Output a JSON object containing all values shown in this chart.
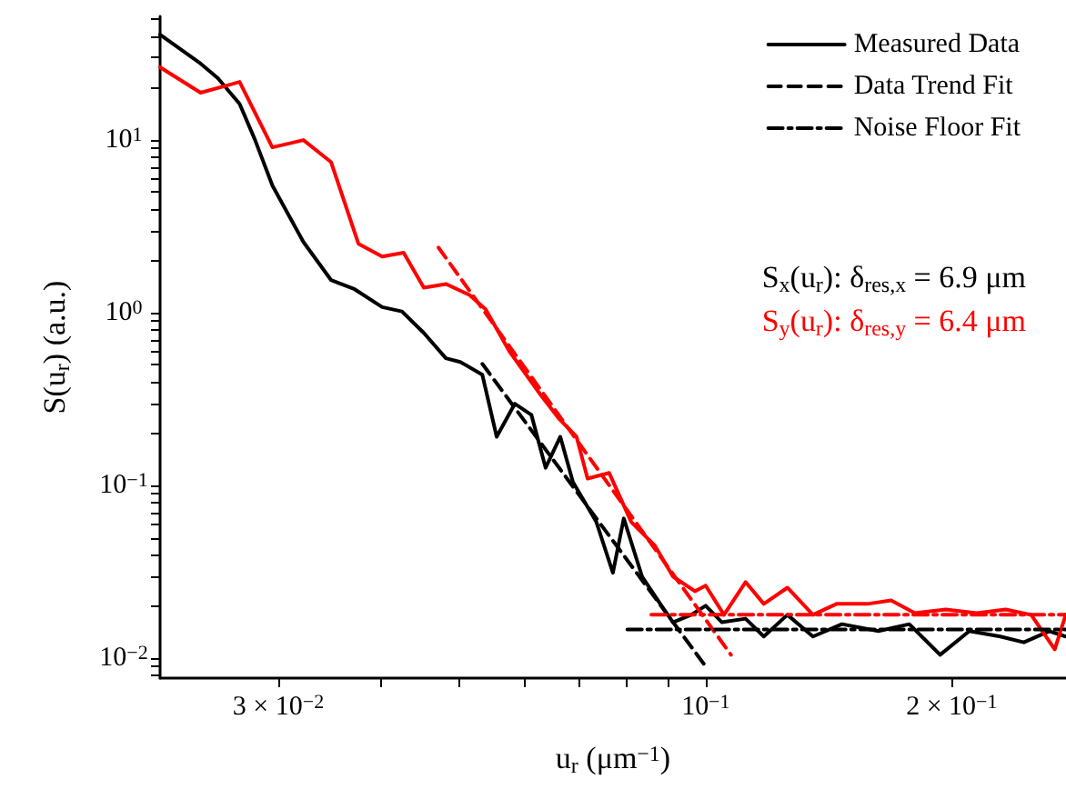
{
  "chart_data": {
    "type": "line",
    "xlabel": "u$_{r}$ (μm$^{−1}$)",
    "ylabel": "S(u$_{r}$) (a.u.)",
    "log": "xy",
    "grid": false,
    "legend": "top right",
    "marker": "none",
    "xlim": [
      0.0215,
      0.276
    ],
    "ylim": [
      0.0077,
      52
    ],
    "xticks": [
      {
        "value": 0.03,
        "label": "3 × 10$^{−2}$"
      },
      {
        "value": 0.04,
        "label": null
      },
      {
        "value": 0.05,
        "label": null
      },
      {
        "value": 0.06,
        "label": null
      },
      {
        "value": 0.07,
        "label": null
      },
      {
        "value": 0.08,
        "label": null
      },
      {
        "value": 0.09,
        "label": null
      },
      {
        "value": 0.1,
        "label": "10$^{−1}$"
      },
      {
        "value": 0.2,
        "label": "2 × 10$^{−1}$"
      }
    ],
    "yticks": [
      {
        "value": 0.008,
        "label": null
      },
      {
        "value": 0.009,
        "label": null
      },
      {
        "value": 0.01,
        "label": "10$^{−2}$"
      },
      {
        "value": 0.02,
        "label": null
      },
      {
        "value": 0.03,
        "label": null
      },
      {
        "value": 0.04,
        "label": null
      },
      {
        "value": 0.05,
        "label": null
      },
      {
        "value": 0.06,
        "label": null
      },
      {
        "value": 0.07,
        "label": null
      },
      {
        "value": 0.08,
        "label": null
      },
      {
        "value": 0.09,
        "label": null
      },
      {
        "value": 0.1,
        "label": "10$^{−1}$"
      },
      {
        "value": 0.2,
        "label": null
      },
      {
        "value": 0.3,
        "label": null
      },
      {
        "value": 0.4,
        "label": null
      },
      {
        "value": 0.5,
        "label": null
      },
      {
        "value": 0.6,
        "label": null
      },
      {
        "value": 0.7,
        "label": null
      },
      {
        "value": 0.8,
        "label": null
      },
      {
        "value": 0.9,
        "label": null
      },
      {
        "value": 1,
        "label": "10$^{0}$"
      },
      {
        "value": 2,
        "label": null
      },
      {
        "value": 3,
        "label": null
      },
      {
        "value": 4,
        "label": null
      },
      {
        "value": 5,
        "label": null
      },
      {
        "value": 6,
        "label": null
      },
      {
        "value": 7,
        "label": null
      },
      {
        "value": 8,
        "label": null
      },
      {
        "value": 9,
        "label": null
      },
      {
        "value": 10,
        "label": "10$^{1}$"
      },
      {
        "value": 20,
        "label": null
      },
      {
        "value": 30,
        "label": null
      },
      {
        "value": 40,
        "label": null
      },
      {
        "value": 50,
        "label": null
      }
    ],
    "annotations": [
      "S$_{x}$(u$_{r}$): δ$_{res,x}$ = 6.9 μm",
      "S$_{y}$(u$_{r}$): δ$_{res,y}$ = 6.4 μm"
    ],
    "series": [
      {
        "name": "Measured Data",
        "color": "#000000",
        "line_style": "solid",
        "x": [
          0.0215,
          0.0241,
          0.0253,
          0.0269,
          0.0281,
          0.0295,
          0.0322,
          0.0348,
          0.0372,
          0.0402,
          0.0425,
          0.0452,
          0.0481,
          0.0501,
          0.0533,
          0.0555,
          0.0584,
          0.0612,
          0.0637,
          0.0664,
          0.0688,
          0.0735,
          0.077,
          0.0794,
          0.0836,
          0.088,
          0.0912,
          0.096,
          0.1,
          0.1047,
          0.1119,
          0.1178,
          0.1259,
          0.1353,
          0.1468,
          0.1627,
          0.1775,
          0.1936,
          0.2102,
          0.2294,
          0.2451,
          0.2633,
          0.2758
        ],
        "values": [
          40.8,
          27.7,
          22.8,
          16.2,
          10.0,
          5.46,
          2.57,
          1.55,
          1.37,
          1.08,
          1.02,
          0.766,
          0.546,
          0.52,
          0.439,
          0.192,
          0.298,
          0.257,
          0.127,
          0.192,
          0.105,
          0.0616,
          0.0313,
          0.0646,
          0.0298,
          0.0207,
          0.0162,
          0.0179,
          0.0202,
          0.0162,
          0.017,
          0.0134,
          0.0179,
          0.0134,
          0.0158,
          0.0144,
          0.0158,
          0.0105,
          0.0144,
          0.0134,
          0.0124,
          0.0144,
          0.0134
        ]
      },
      {
        "color": "#ff0000",
        "line_style": "solid",
        "x": [
          0.0215,
          0.0241,
          0.0269,
          0.0295,
          0.0322,
          0.0348,
          0.0376,
          0.0402,
          0.0427,
          0.0452,
          0.0481,
          0.0514,
          0.0538,
          0.0575,
          0.0628,
          0.0661,
          0.0695,
          0.0717,
          0.0762,
          0.0811,
          0.0867,
          0.0912,
          0.097,
          0.1,
          0.1053,
          0.1119,
          0.1178,
          0.1259,
          0.1353,
          0.1446,
          0.1578,
          0.1686,
          0.1803,
          0.1967,
          0.2146,
          0.2329,
          0.2502,
          0.2674,
          0.2758
        ],
        "values": [
          26.4,
          18.8,
          21.7,
          9.08,
          10.0,
          7.47,
          2.51,
          2.12,
          2.23,
          1.4,
          1.47,
          1.27,
          1.05,
          0.601,
          0.336,
          0.245,
          0.192,
          0.11,
          0.1185,
          0.0616,
          0.0449,
          0.0298,
          0.0245,
          0.0264,
          0.0179,
          0.0277,
          0.0207,
          0.0257,
          0.0179,
          0.0207,
          0.0207,
          0.0217,
          0.0183,
          0.0192,
          0.0183,
          0.0192,
          0.0179,
          0.0113,
          0.0179
        ]
      },
      {
        "name": "Data Trend Fit",
        "color": "#000000",
        "line_style": "dashed",
        "x": [
          0.0533,
          0.0995
        ],
        "values": [
          0.507,
          0.0093
        ]
      },
      {
        "color": "#ff0000",
        "line_style": "dashed",
        "x": [
          0.0471,
          0.1074
        ],
        "values": [
          2.39,
          0.0105
        ]
      },
      {
        "name": "Noise Floor Fit",
        "color": "#000000",
        "line_style": "dashdot",
        "x": [
          0.0802,
          0.2758
        ],
        "values": [
          0.0147,
          0.0147
        ]
      },
      {
        "color": "#ff0000",
        "line_style": "dashdot",
        "x": [
          0.0858,
          0.2758
        ],
        "values": [
          0.0179,
          0.0179
        ]
      }
    ]
  }
}
